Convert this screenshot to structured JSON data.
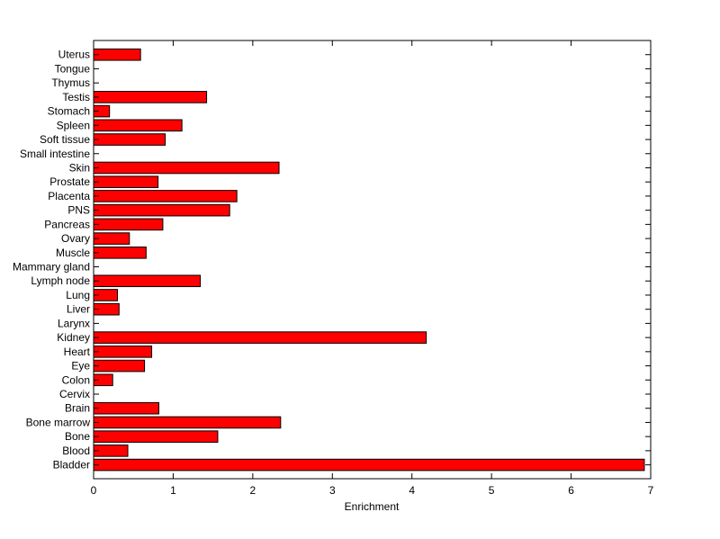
{
  "chart_data": {
    "type": "bar",
    "orientation": "horizontal",
    "xlabel": "Enrichment",
    "ylabel": "",
    "xlim": [
      0,
      7
    ],
    "xticks": [
      0,
      1,
      2,
      3,
      4,
      5,
      6,
      7
    ],
    "grid": false,
    "bar_color": "#ff0000",
    "bar_edge_color": "#000000",
    "categories": [
      "Bladder",
      "Blood",
      "Bone",
      "Bone marrow",
      "Brain",
      "Cervix",
      "Colon",
      "Eye",
      "Heart",
      "Kidney",
      "Larynx",
      "Liver",
      "Lung",
      "Lymph node",
      "Mammary gland",
      "Muscle",
      "Ovary",
      "Pancreas",
      "PNS",
      "Placenta",
      "Prostate",
      "Skin",
      "Small intestine",
      "Soft tissue",
      "Spleen",
      "Stomach",
      "Testis",
      "Thymus",
      "Tongue",
      "Uterus"
    ],
    "values": [
      6.92,
      0.43,
      1.56,
      2.35,
      0.82,
      0,
      0.24,
      0.64,
      0.73,
      4.18,
      0,
      0.32,
      0.3,
      1.34,
      0,
      0.66,
      0.45,
      0.87,
      1.71,
      1.8,
      0.81,
      2.33,
      0,
      0.9,
      1.11,
      0.2,
      1.42,
      0,
      0,
      0.59
    ]
  }
}
